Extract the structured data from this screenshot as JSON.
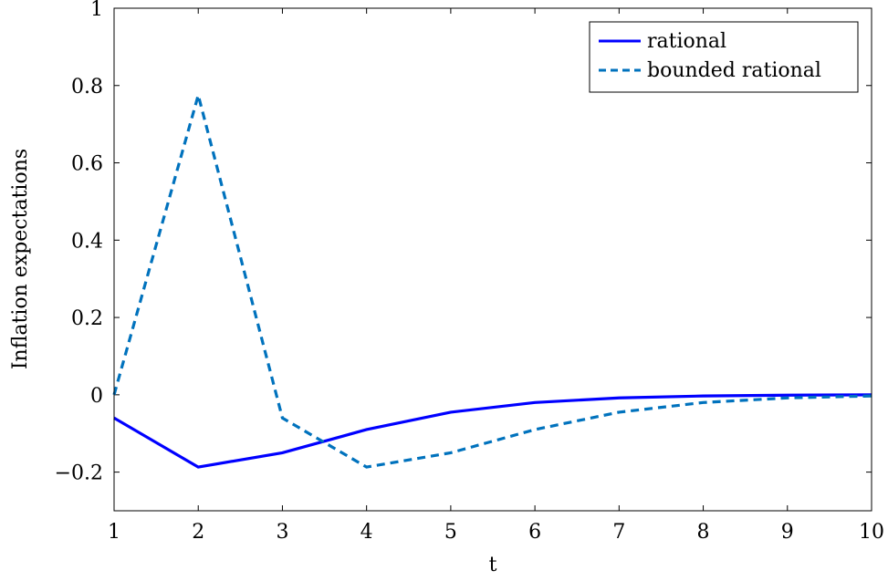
{
  "chart_data": {
    "type": "line",
    "xlabel": "t",
    "ylabel": "Inflation expectations",
    "xlim": [
      1,
      10
    ],
    "ylim": [
      -0.3,
      1
    ],
    "xticks": [
      1,
      2,
      3,
      4,
      5,
      6,
      7,
      8,
      9,
      10
    ],
    "xtick_labels": [
      "1",
      "2",
      "3",
      "4",
      "5",
      "6",
      "7",
      "8",
      "9",
      "10"
    ],
    "yticks": [
      -0.2,
      0,
      0.2,
      0.4,
      0.6,
      0.8,
      1
    ],
    "ytick_labels": [
      "−0.2",
      "0",
      "0.2",
      "0.4",
      "0.6",
      "0.8",
      "1"
    ],
    "grid": false,
    "legend_position": "top-right",
    "x": [
      1,
      2,
      3,
      4,
      5,
      6,
      7,
      8,
      9,
      10
    ],
    "series": [
      {
        "name": "rational",
        "values": [
          -0.06,
          -0.187,
          -0.15,
          -0.09,
          -0.045,
          -0.02,
          -0.008,
          -0.003,
          -0.001,
          0
        ],
        "color": "#0000ff",
        "style": "solid"
      },
      {
        "name": "bounded rational",
        "values": [
          0,
          0.775,
          -0.06,
          -0.187,
          -0.15,
          -0.09,
          -0.045,
          -0.02,
          -0.008,
          -0.003
        ],
        "color": "#0072bd",
        "style": "dashed"
      }
    ]
  }
}
